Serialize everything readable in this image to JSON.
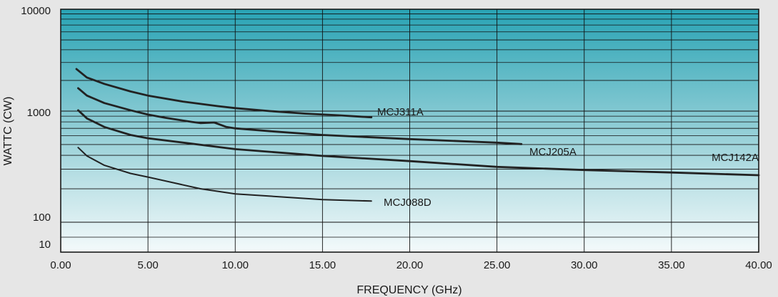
{
  "chart_data": {
    "type": "line",
    "title": "",
    "xlabel": "FREQUENCY (GHz)",
    "ylabel": "WATTC (CW)",
    "x_ticks": [
      "0.00",
      "5.00",
      "10.00",
      "15.00",
      "20.00",
      "25.00",
      "30.00",
      "35.00",
      "40.00"
    ],
    "y_ticks": [
      "10000",
      "1000",
      "100",
      "10"
    ],
    "xlim": [
      0,
      40
    ],
    "grid": true,
    "colors": {
      "background": "#e6e6e6",
      "plot_top": "#28a3b4",
      "plot_bottom": "#f4fafb",
      "line": "#222222"
    },
    "series": [
      {
        "name": "MCJ311A",
        "x": [
          0.9,
          1.5,
          2.5,
          4,
          5,
          7,
          9,
          10,
          12,
          14,
          16,
          17.8
        ],
        "y": [
          2590,
          2140,
          1850,
          1560,
          1420,
          1240,
          1120,
          1070,
          1000,
          950,
          915,
          880
        ]
      },
      {
        "name": "MCJ205A",
        "x": [
          1,
          1.5,
          2.5,
          4,
          5,
          6,
          7.5,
          8,
          8.8,
          9.5,
          10,
          12,
          15,
          20,
          25,
          26.4
        ],
        "y": [
          1680,
          1420,
          1200,
          1020,
          930,
          870,
          800,
          780,
          790,
          720,
          700,
          660,
          610,
          560,
          520,
          505
        ]
      },
      {
        "name": "MCJ142A",
        "x": [
          1,
          1.5,
          2.5,
          4,
          5,
          10,
          15,
          20,
          25,
          30,
          35,
          40
        ],
        "y": [
          1020,
          860,
          720,
          610,
          570,
          455,
          395,
          355,
          315,
          295,
          280,
          265
        ]
      },
      {
        "name": "MCJ088D",
        "x": [
          1,
          1.5,
          2.5,
          4,
          5,
          8,
          10,
          15,
          17.8
        ],
        "y": [
          470,
          395,
          325,
          275,
          255,
          200,
          180,
          160,
          155
        ]
      }
    ]
  }
}
